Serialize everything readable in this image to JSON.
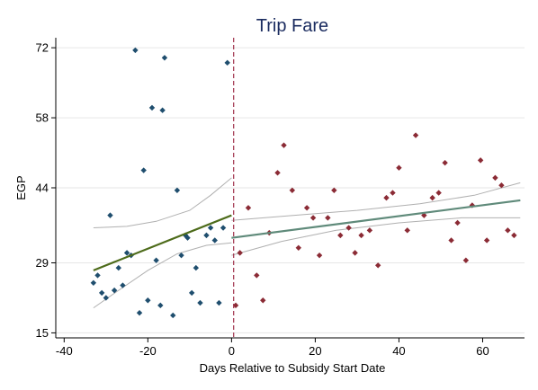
{
  "chart_data": {
    "type": "scatter",
    "title": "Trip Fare",
    "xlabel": "Days Relative to Subsidy Start Date",
    "ylabel": "EGP",
    "xlim": [
      -42,
      70
    ],
    "ylim": [
      14,
      74
    ],
    "x_ticks": [
      -40,
      -20,
      0,
      20,
      40,
      60
    ],
    "y_ticks": [
      15,
      29,
      44,
      58,
      72
    ],
    "grid": "horizontal",
    "cutoff_x": 0.5,
    "colors": {
      "pre": "#1f4e6e",
      "post": "#8b2b35",
      "fit_pre": "#4d6b1a",
      "fit_post": "#5f8a7a",
      "ci": "#b0b0b0",
      "cutoff": "#a0304a",
      "grid": "#e6e6e6",
      "title": "#1a2b5f"
    },
    "series": [
      {
        "group": "pre",
        "points": [
          [
            -33,
            25
          ],
          [
            -32,
            26.5
          ],
          [
            -31,
            23
          ],
          [
            -30,
            22
          ],
          [
            -29,
            38.5
          ],
          [
            -28,
            23.5
          ],
          [
            -27,
            28
          ],
          [
            -26,
            24.5
          ],
          [
            -25,
            31
          ],
          [
            -24,
            30.5
          ],
          [
            -23,
            71.5
          ],
          [
            -22,
            19
          ],
          [
            -21,
            47.5
          ],
          [
            -20,
            21.5
          ],
          [
            -19,
            60
          ],
          [
            -18,
            29.5
          ],
          [
            -17,
            20.5
          ],
          [
            -16.5,
            59.5
          ],
          [
            -16,
            70
          ],
          [
            -14,
            18.5
          ],
          [
            -13,
            43.5
          ],
          [
            -12,
            30.5
          ],
          [
            -11,
            34.5
          ],
          [
            -10.5,
            34
          ],
          [
            -9.5,
            23
          ],
          [
            -8.5,
            28
          ],
          [
            -7.5,
            21
          ],
          [
            -6,
            34.5
          ],
          [
            -5,
            36
          ],
          [
            -4,
            33.5
          ],
          [
            -3,
            21
          ],
          [
            -2,
            36
          ],
          [
            -1,
            69
          ]
        ]
      },
      {
        "group": "post",
        "points": [
          [
            1,
            20.5
          ],
          [
            2,
            31
          ],
          [
            4,
            40
          ],
          [
            6,
            26.5
          ],
          [
            7.5,
            21.5
          ],
          [
            9,
            35
          ],
          [
            11,
            47
          ],
          [
            12.5,
            52.5
          ],
          [
            14.5,
            43.5
          ],
          [
            16,
            32
          ],
          [
            18,
            40
          ],
          [
            19.5,
            38
          ],
          [
            21,
            30.5
          ],
          [
            23,
            38
          ],
          [
            24.5,
            43.5
          ],
          [
            26,
            34.5
          ],
          [
            28,
            36
          ],
          [
            29.5,
            31
          ],
          [
            31,
            34.5
          ],
          [
            33,
            35.5
          ],
          [
            35,
            28.5
          ],
          [
            37,
            42
          ],
          [
            38.5,
            43
          ],
          [
            40,
            48
          ],
          [
            42,
            35.5
          ],
          [
            44,
            54.5
          ],
          [
            46,
            38.5
          ],
          [
            48,
            42
          ],
          [
            49.5,
            43
          ],
          [
            51,
            49
          ],
          [
            52.5,
            33.5
          ],
          [
            54,
            37
          ],
          [
            56,
            29.5
          ],
          [
            57.5,
            40.5
          ],
          [
            59.5,
            49.5
          ],
          [
            61,
            33.5
          ],
          [
            63,
            46
          ],
          [
            64.5,
            44.5
          ],
          [
            66,
            35.5
          ],
          [
            67.5,
            34.5
          ]
        ]
      }
    ],
    "fits": [
      {
        "group": "pre",
        "line": [
          [
            -33,
            27.5
          ],
          [
            0,
            38.5
          ]
        ],
        "ci_upper": [
          [
            -33,
            36
          ],
          [
            -25,
            36.3
          ],
          [
            -18,
            37.3
          ],
          [
            -10,
            39.5
          ],
          [
            -5,
            42.5
          ],
          [
            0,
            46
          ]
        ],
        "ci_lower": [
          [
            -33,
            20
          ],
          [
            -27,
            23.5
          ],
          [
            -20,
            27.5
          ],
          [
            -13,
            30.8
          ],
          [
            -6,
            32.5
          ],
          [
            0,
            33
          ]
        ]
      },
      {
        "group": "post",
        "line": [
          [
            0,
            34
          ],
          [
            69,
            41.5
          ]
        ],
        "ci_upper": [
          [
            0,
            37.5
          ],
          [
            15,
            38.5
          ],
          [
            30,
            39.5
          ],
          [
            45,
            40.8
          ],
          [
            58,
            42.5
          ],
          [
            69,
            45
          ]
        ],
        "ci_lower": [
          [
            0,
            30.5
          ],
          [
            12,
            33.3
          ],
          [
            25,
            35.5
          ],
          [
            40,
            37
          ],
          [
            55,
            38
          ],
          [
            69,
            38
          ]
        ]
      }
    ]
  }
}
